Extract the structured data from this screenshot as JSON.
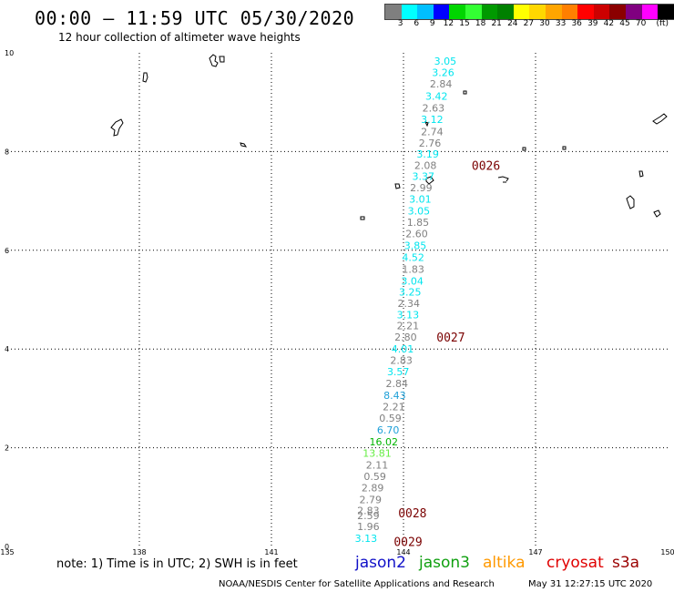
{
  "header": {
    "title": "00:00 – 11:59 UTC 05/30/2020",
    "subtitle": "12 hour collection of altimeter wave heights"
  },
  "colorbar": {
    "colors": [
      "#7f7f7f",
      "#00ffff",
      "#00bfff",
      "#0000ff",
      "#00d600",
      "#33ff33",
      "#009900",
      "#008000",
      "#ffff00",
      "#ffd700",
      "#ffa500",
      "#ff7f00",
      "#ff0000",
      "#cc0000",
      "#8b0000",
      "#800080",
      "#ff00ff",
      "#000000"
    ],
    "labels": [
      "3",
      "6",
      "9",
      "12",
      "15",
      "18",
      "21",
      "24",
      "27",
      "30",
      "33",
      "36",
      "39",
      "42",
      "45",
      "70"
    ],
    "unit": "(ft)"
  },
  "map": {
    "lon_ticks": [
      "135",
      "138",
      "141",
      "144",
      "147",
      "150"
    ],
    "lat_ticks": [
      "0",
      "2",
      "4",
      "6",
      "8",
      "10"
    ],
    "lon_range": [
      135,
      150
    ],
    "lat_range": [
      0,
      10
    ],
    "grid": true
  },
  "wave_heights": [
    {
      "value": "3.05",
      "color": "#00e5ee",
      "lon": 144.95,
      "lat": 9.83
    },
    {
      "value": "3.26",
      "color": "#00e5ee",
      "lon": 144.9,
      "lat": 9.6
    },
    {
      "value": "2.84",
      "color": "#808080",
      "lon": 144.85,
      "lat": 9.37
    },
    {
      "value": "3.42",
      "color": "#00e5ee",
      "lon": 144.75,
      "lat": 9.12
    },
    {
      "value": "2.63",
      "color": "#808080",
      "lon": 144.68,
      "lat": 8.88
    },
    {
      "value": "3.12",
      "color": "#00e5ee",
      "lon": 144.65,
      "lat": 8.65
    },
    {
      "value": "2.74",
      "color": "#808080",
      "lon": 144.65,
      "lat": 8.4
    },
    {
      "value": "2.76",
      "color": "#808080",
      "lon": 144.6,
      "lat": 8.17
    },
    {
      "value": "3.19",
      "color": "#00e5ee",
      "lon": 144.55,
      "lat": 7.95
    },
    {
      "value": "2.08",
      "color": "#808080",
      "lon": 144.5,
      "lat": 7.72
    },
    {
      "value": "3.37",
      "color": "#00e5ee",
      "lon": 144.45,
      "lat": 7.5
    },
    {
      "value": "2.99",
      "color": "#808080",
      "lon": 144.4,
      "lat": 7.27
    },
    {
      "value": "3.01",
      "color": "#00e5ee",
      "lon": 144.38,
      "lat": 7.04
    },
    {
      "value": "3.05",
      "color": "#00e5ee",
      "lon": 144.35,
      "lat": 6.8
    },
    {
      "value": "1.85",
      "color": "#808080",
      "lon": 144.33,
      "lat": 6.57
    },
    {
      "value": "2.60",
      "color": "#808080",
      "lon": 144.3,
      "lat": 6.34
    },
    {
      "value": "3.85",
      "color": "#00e5ee",
      "lon": 144.27,
      "lat": 6.1
    },
    {
      "value": "4.52",
      "color": "#00e5ee",
      "lon": 144.22,
      "lat": 5.86
    },
    {
      "value": "1.83",
      "color": "#808080",
      "lon": 144.22,
      "lat": 5.62
    },
    {
      "value": "3.04",
      "color": "#00e5ee",
      "lon": 144.2,
      "lat": 5.38
    },
    {
      "value": "3.25",
      "color": "#00e5ee",
      "lon": 144.15,
      "lat": 5.16
    },
    {
      "value": "2.34",
      "color": "#808080",
      "lon": 144.12,
      "lat": 4.93
    },
    {
      "value": "3.13",
      "color": "#00e5ee",
      "lon": 144.1,
      "lat": 4.7
    },
    {
      "value": "2.21",
      "color": "#808080",
      "lon": 144.1,
      "lat": 4.47
    },
    {
      "value": "2.80",
      "color": "#808080",
      "lon": 144.05,
      "lat": 4.24
    },
    {
      "value": "4.01",
      "color": "#00e5ee",
      "lon": 143.98,
      "lat": 4.0
    },
    {
      "value": "2.83",
      "color": "#808080",
      "lon": 143.95,
      "lat": 3.77
    },
    {
      "value": "3.57",
      "color": "#00e5ee",
      "lon": 143.88,
      "lat": 3.54
    },
    {
      "value": "2.84",
      "color": "#808080",
      "lon": 143.85,
      "lat": 3.3
    },
    {
      "value": "8.43",
      "color": "#1ea0d8",
      "lon": 143.8,
      "lat": 3.06
    },
    {
      "value": "2.21",
      "color": "#808080",
      "lon": 143.78,
      "lat": 2.83
    },
    {
      "value": "0.59",
      "color": "#808080",
      "lon": 143.7,
      "lat": 2.6
    },
    {
      "value": "6.70",
      "color": "#1ea0d8",
      "lon": 143.65,
      "lat": 2.36
    },
    {
      "value": "16.02",
      "color": "#00b400",
      "lon": 143.55,
      "lat": 2.12
    },
    {
      "value": "13.81",
      "color": "#66ee44",
      "lon": 143.4,
      "lat": 1.89
    },
    {
      "value": "2.11",
      "color": "#808080",
      "lon": 143.4,
      "lat": 1.65
    },
    {
      "value": "0.59",
      "color": "#808080",
      "lon": 143.35,
      "lat": 1.42
    },
    {
      "value": "2.89",
      "color": "#808080",
      "lon": 143.3,
      "lat": 1.19
    },
    {
      "value": "2.79",
      "color": "#808080",
      "lon": 143.25,
      "lat": 0.95
    },
    {
      "value": "2.83",
      "color": "#808080",
      "lon": 143.2,
      "lat": 0.73
    },
    {
      "value": "2.59",
      "color": "#808080",
      "lon": 143.2,
      "lat": 0.63
    },
    {
      "value": "1.96",
      "color": "#808080",
      "lon": 143.2,
      "lat": 0.41
    },
    {
      "value": "3.13",
      "color": "#00e5ee",
      "lon": 143.15,
      "lat": 0.17
    }
  ],
  "orbit_times": [
    {
      "label": "0026",
      "lon": 145.55,
      "lat": 7.72
    },
    {
      "label": "0027",
      "lon": 144.75,
      "lat": 4.24
    },
    {
      "label": "0028",
      "lon": 143.88,
      "lat": 0.68
    },
    {
      "label": "0029",
      "lon": 143.78,
      "lat": 0.1
    }
  ],
  "footer": {
    "note": "note: 1) Time is in UTC; 2) SWH is in feet",
    "satellites": [
      {
        "name": "jason2",
        "color": "#1010c8"
      },
      {
        "name": "jason3",
        "color": "#10a010"
      },
      {
        "name": "altika",
        "color": "#ff9900"
      },
      {
        "name": "cryosat",
        "color": "#e00000"
      },
      {
        "name": "s3a",
        "color": "#9a0000"
      }
    ],
    "credit": "NOAA/NESDIS Center for Satellite Applications and Research",
    "timestamp": "May 31 12:27:15 UTC 2020"
  }
}
